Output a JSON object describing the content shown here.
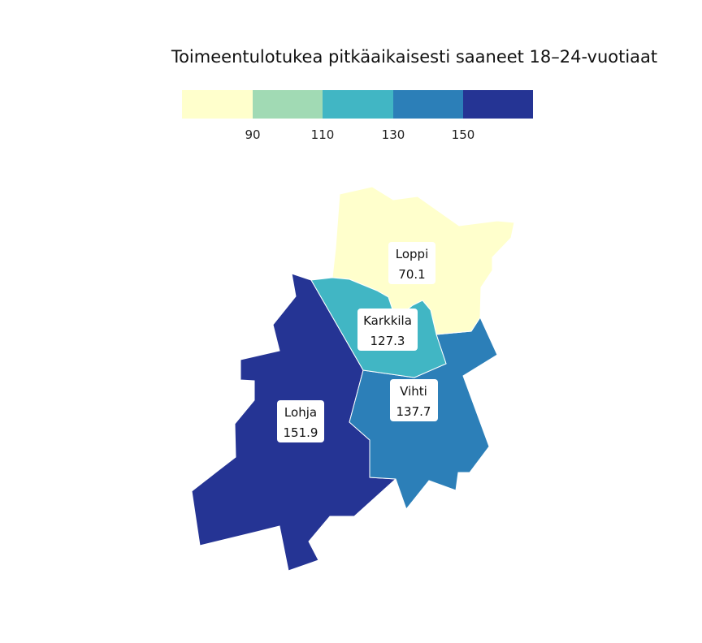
{
  "title": "Toimeentulotukea pitkäaikaisesti saaneet 18–24-vuotiaat",
  "legend": {
    "bins": [
      {
        "color": "#ffffcc"
      },
      {
        "color": "#a1dab4"
      },
      {
        "color": "#41b6c4"
      },
      {
        "color": "#2c7fb8"
      },
      {
        "color": "#253494"
      }
    ],
    "ticks": [
      "90",
      "110",
      "130",
      "150"
    ]
  },
  "chart_data": {
    "type": "choropleth",
    "title": "Toimeentulotukea pitkäaikaisesti saaneet 18–24-vuotiaat",
    "breaks": [
      90,
      110,
      130,
      150
    ],
    "regions": [
      {
        "name": "Loppi",
        "value": "70.1",
        "color": "#ffffcc"
      },
      {
        "name": "Karkkila",
        "value": "127.3",
        "color": "#41b6c4"
      },
      {
        "name": "Vihti",
        "value": "137.7",
        "color": "#2c7fb8"
      },
      {
        "name": "Lohja",
        "value": "151.9",
        "color": "#253494"
      }
    ]
  }
}
